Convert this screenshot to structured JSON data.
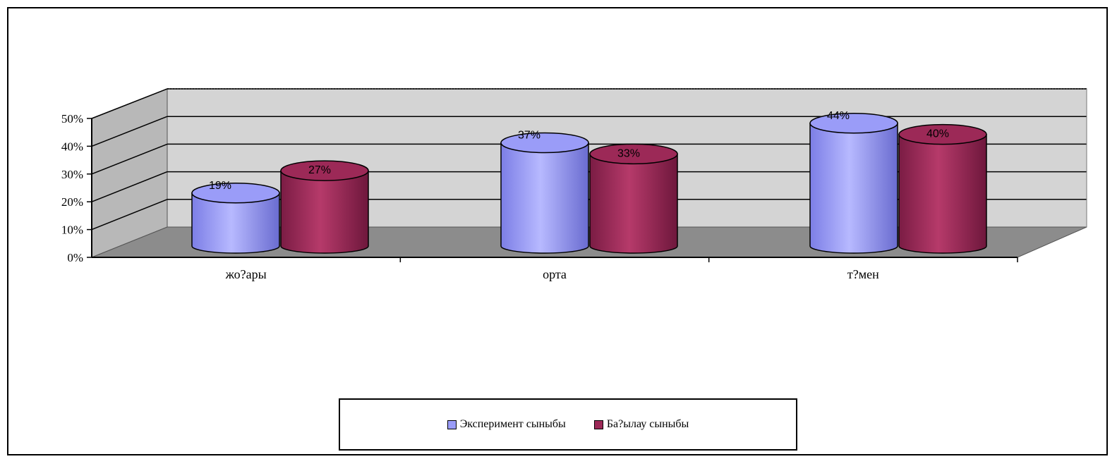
{
  "chart_data": {
    "type": "bar",
    "style": "3d-cylinder",
    "categories": [
      "жо?ары",
      "орта",
      "т?мен"
    ],
    "series": [
      {
        "name": "Эксперимент сыныбы",
        "values": [
          19,
          37,
          44
        ],
        "labels": [
          "19%",
          "37%",
          "44%"
        ],
        "color": "#9a9cf8"
      },
      {
        "name": "Ба?ылау сыныбы",
        "values": [
          27,
          33,
          40
        ],
        "labels": [
          "27%",
          "33%",
          "40%"
        ],
        "color": "#9c2957"
      }
    ],
    "y_ticks": [
      "0%",
      "10%",
      "20%",
      "30%",
      "40%",
      "50%"
    ],
    "ylim": [
      0,
      50
    ],
    "grid": true,
    "legend_position": "bottom",
    "wall_color": "#d4d4d4",
    "floor_color": "#8c8c8c"
  }
}
